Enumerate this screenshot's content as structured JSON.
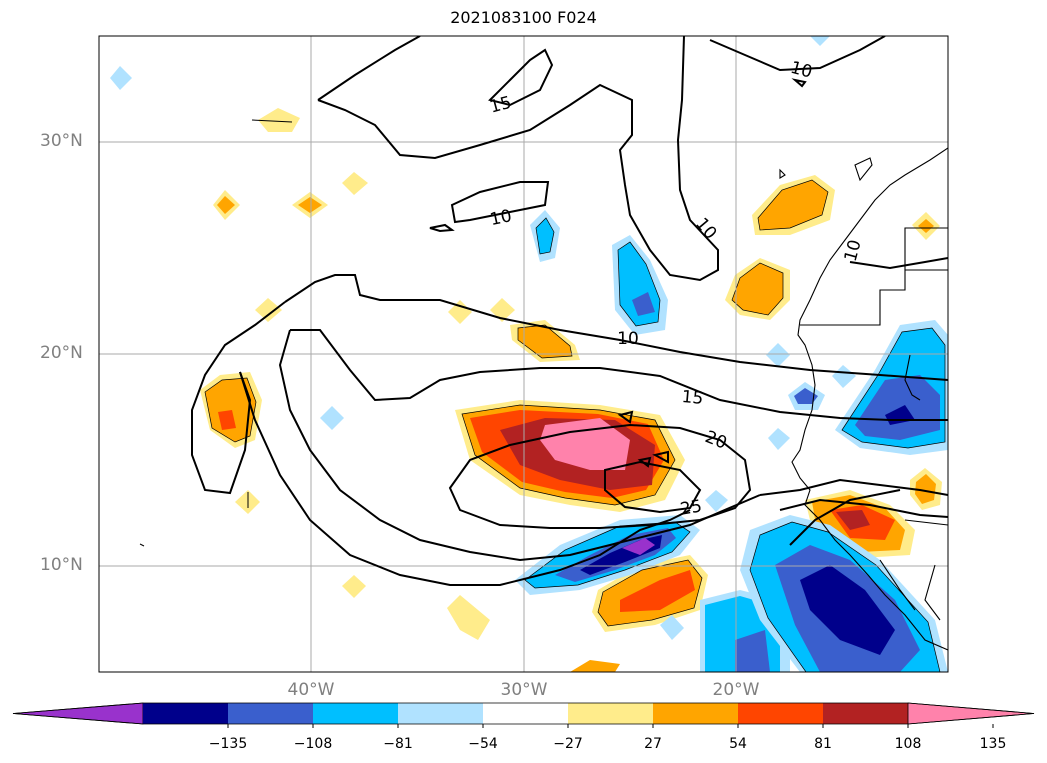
{
  "title": "2021083100 F024",
  "map": {
    "lat_labels": [
      "30°N",
      "20°N",
      "10°N"
    ],
    "lon_labels": [
      "40°W",
      "30°W",
      "20°W"
    ],
    "contour_labels": [
      "15",
      "10",
      "10",
      "10",
      "10",
      "15",
      "20",
      "25",
      "10"
    ]
  },
  "colorbar": {
    "colors": [
      "#9932cc",
      "#00008b",
      "#3a5fcd",
      "#00bfff",
      "#b0e2ff",
      "#ffffff",
      "#ffec8b",
      "#ffa500",
      "#ff4500",
      "#b22222",
      "#ff82ab"
    ],
    "ticks": [
      "−135",
      "−108",
      "−81",
      "−54",
      "−27",
      "27",
      "54",
      "81",
      "108",
      "135"
    ]
  }
}
